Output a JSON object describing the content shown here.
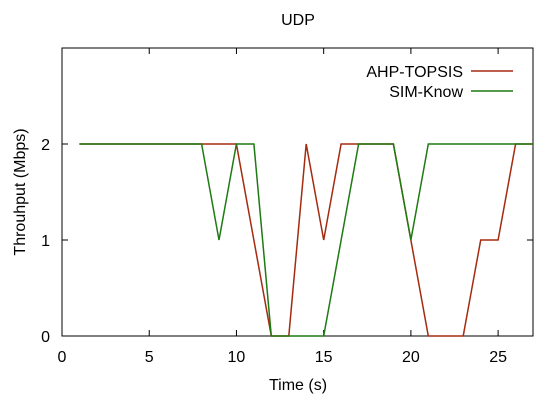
{
  "chart_data": {
    "type": "line",
    "title": "UDP",
    "xlabel": "Time (s)",
    "ylabel": "Throuhput (Mbps)",
    "xlim": [
      0,
      27
    ],
    "ylim": [
      0,
      3
    ],
    "xticks": [
      0,
      5,
      10,
      15,
      20,
      25
    ],
    "yticks": [
      0,
      1,
      2
    ],
    "grid": false,
    "legend_position": "top-right",
    "series": [
      {
        "name": "AHP-TOPSIS",
        "color": "#a52a10",
        "x": [
          1,
          10,
          12,
          13,
          14,
          15,
          16,
          19,
          21,
          23,
          24,
          25,
          26,
          27
        ],
        "y": [
          2,
          2,
          0,
          0,
          2,
          1,
          2,
          2,
          0,
          0,
          1,
          1,
          2,
          2
        ]
      },
      {
        "name": "SIM-Know",
        "color": "#1e7a12",
        "x": [
          1,
          8,
          9,
          10,
          11,
          12,
          15,
          17,
          19,
          20,
          21,
          27
        ],
        "y": [
          2,
          2,
          1,
          2,
          2,
          0,
          0,
          2,
          2,
          1,
          2,
          2
        ]
      }
    ]
  }
}
